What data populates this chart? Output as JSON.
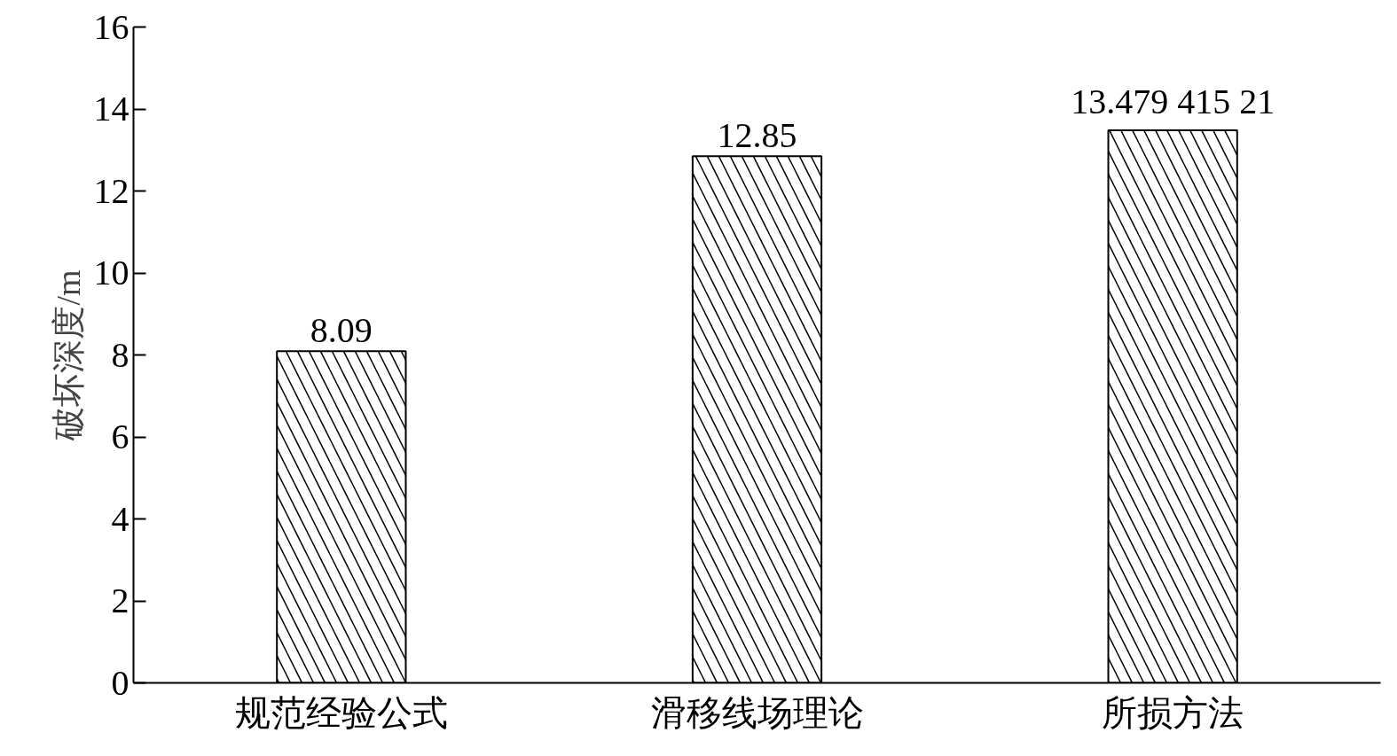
{
  "chart_data": {
    "type": "bar",
    "ylabel": "破坏深度/m",
    "categories": [
      "规范经验公式",
      "滑移线场理论",
      "所损方法"
    ],
    "values": [
      8.09,
      12.85,
      13.47941521
    ],
    "value_labels": [
      "8.09",
      "12.85",
      "13.479 415 21"
    ],
    "color": "#ffffff",
    "ylim": [
      0,
      16
    ],
    "yticks": [
      0,
      2,
      4,
      6,
      8,
      10,
      12,
      14,
      16
    ],
    "grid": false
  }
}
